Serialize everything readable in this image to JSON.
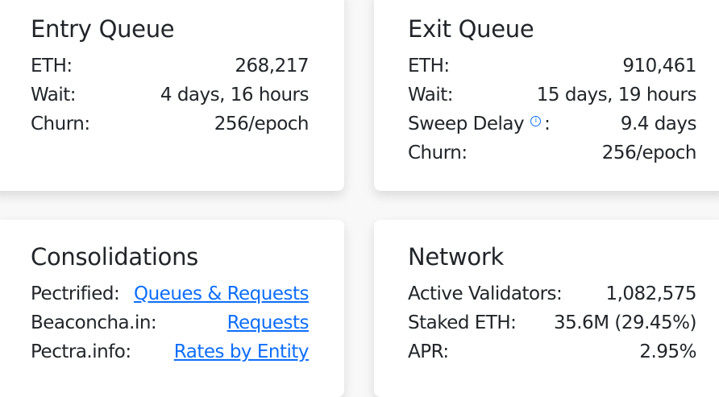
{
  "entry": {
    "title": "Entry Queue",
    "rows": [
      {
        "label": "ETH:",
        "value": "268,217"
      },
      {
        "label": "Wait:",
        "value": "4 days, 16 hours"
      },
      {
        "label": "Churn:",
        "value": "256/epoch"
      }
    ]
  },
  "exit": {
    "title": "Exit Queue",
    "rows": [
      {
        "label": "ETH:",
        "value": "910,461"
      },
      {
        "label": "Wait:",
        "value": "15 days, 19 hours"
      },
      {
        "label": "Sweep Delay",
        "value": "9.4 days"
      },
      {
        "label": "Churn:",
        "value": "256/epoch"
      }
    ],
    "colon": ":",
    "info_icon": "i"
  },
  "consolidations": {
    "title": "Consolidations",
    "rows": [
      {
        "label": "Pectrified:",
        "link": "Queues & Requests"
      },
      {
        "label": "Beaconcha.in:",
        "link": "Requests"
      },
      {
        "label": "Pectra.info:",
        "link": "Rates by Entity"
      }
    ]
  },
  "network": {
    "title": "Network",
    "rows": [
      {
        "label": "Active Validators:",
        "value": "1,082,575"
      },
      {
        "label": "Staked ETH:",
        "value": "35.6M (29.45%)"
      },
      {
        "label": "APR:",
        "value": "2.95%"
      }
    ]
  },
  "colors": {
    "link": "#0d6efd",
    "text": "#212529"
  }
}
